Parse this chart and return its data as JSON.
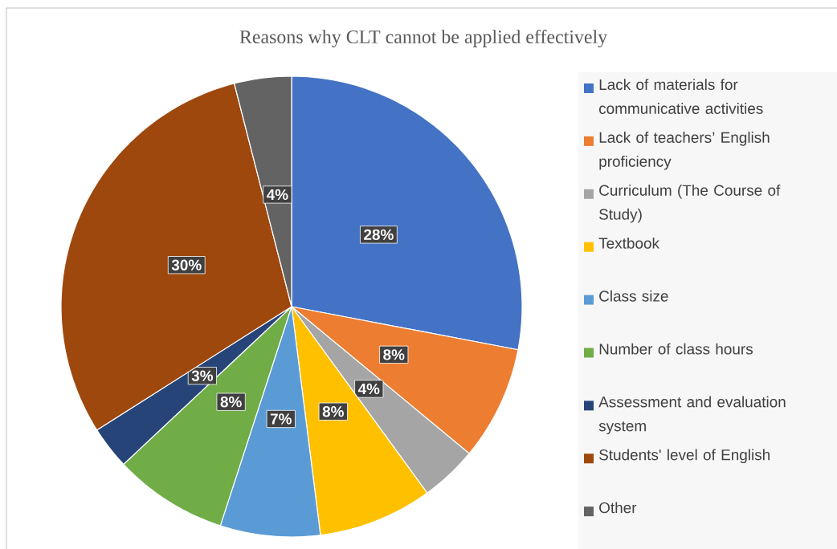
{
  "chart_data": {
    "type": "pie",
    "title": "Reasons why CLT cannot be applied effectively",
    "categories": [
      "Lack of materials for communicative activities",
      "Lack of teachers’ English proficiency",
      "Curriculum (The Course of Study)",
      "Textbook",
      "Class size",
      "Number of class hours",
      "Assessment and evaluation system",
      "Students' level of English",
      "Other"
    ],
    "values": [
      28,
      8,
      4,
      8,
      7,
      8,
      3,
      30,
      4
    ],
    "value_labels": [
      "28%",
      "8%",
      "4%",
      "8%",
      "7%",
      "8%",
      "3%",
      "30%",
      "4%"
    ],
    "colors": [
      "#4472c4",
      "#ed7d31",
      "#a5a5a5",
      "#ffc000",
      "#5b9bd5",
      "#70ad47",
      "#264478",
      "#9e480e",
      "#636363"
    ],
    "legend": "right"
  }
}
